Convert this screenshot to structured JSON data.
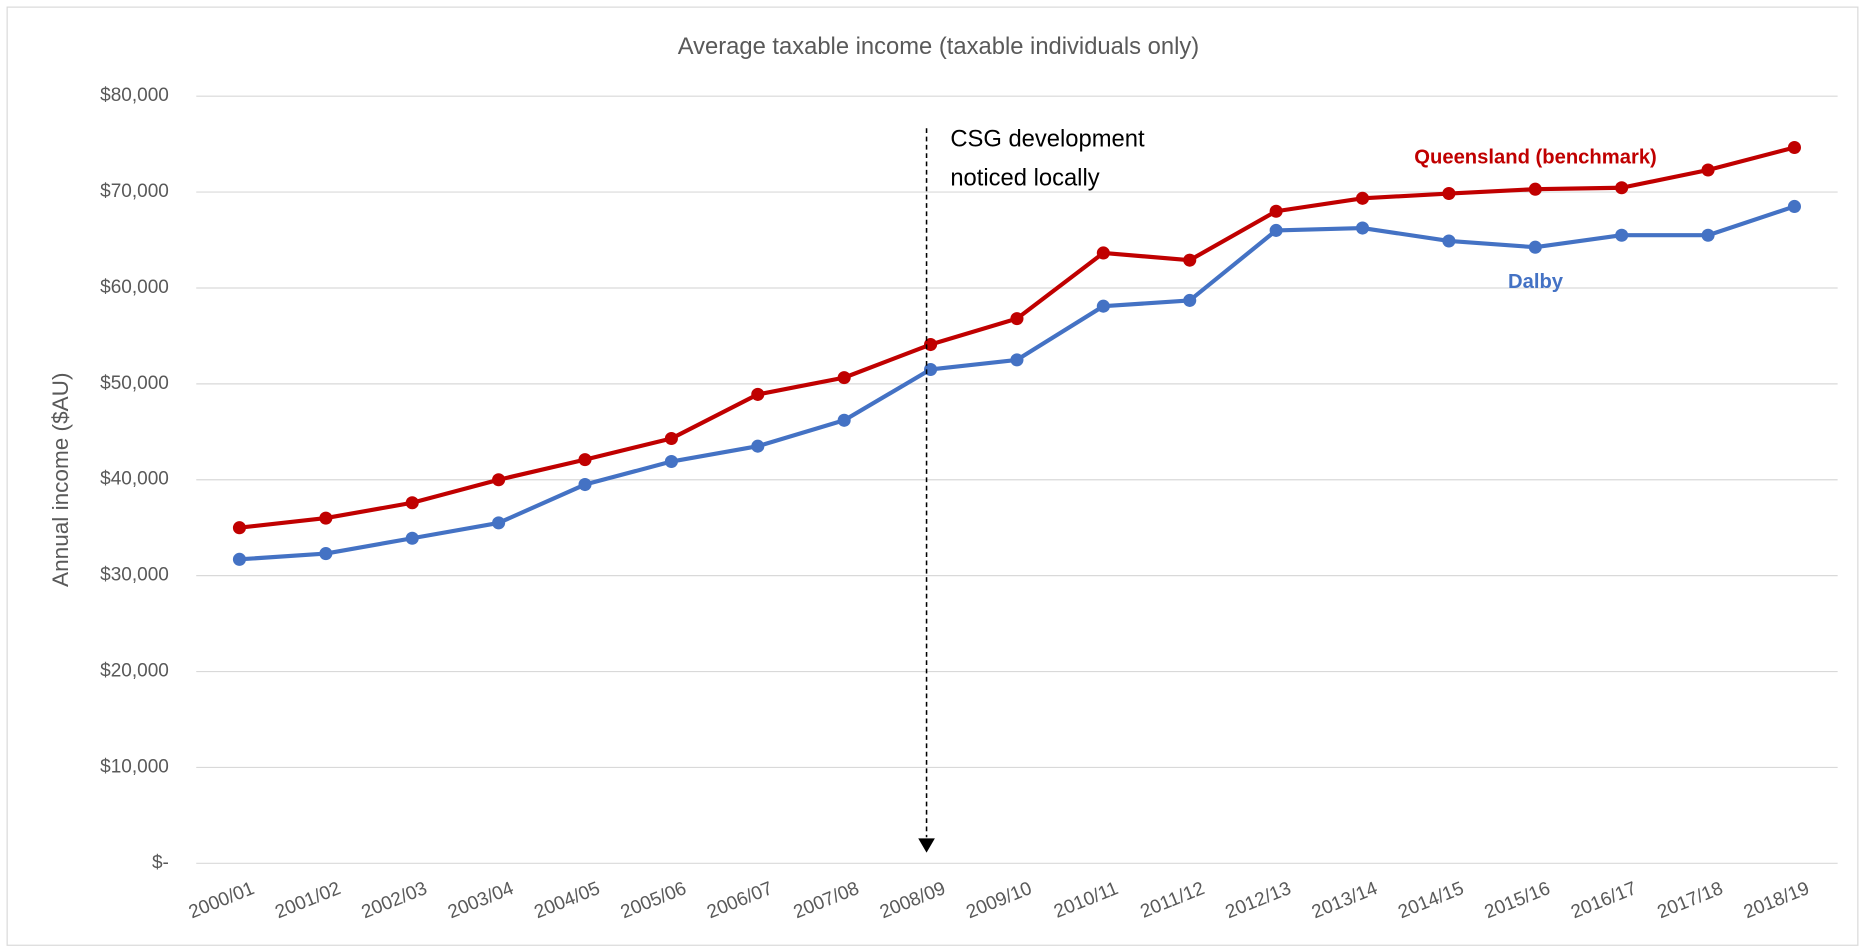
{
  "chart_data": {
    "type": "line",
    "title": "Average taxable income (taxable individuals only)",
    "y_label": "Annual income ($AU)",
    "annotation": [
      "CSG development",
      "noticed locally"
    ],
    "categories": [
      "2000/01",
      "2001/02",
      "2002/03",
      "2003/04",
      "2004/05",
      "2005/06",
      "2006/07",
      "2007/08",
      "2008/09",
      "2009/10",
      "2010/11",
      "2011/12",
      "2012/13",
      "2013/14",
      "2014/15",
      "2015/16",
      "2016/17",
      "2017/18",
      "2018/19"
    ],
    "series": [
      {
        "name": "Queensland (benchmark)",
        "color": "#c00000",
        "values": [
          35000,
          36000,
          37600,
          40000,
          42100,
          44300,
          48900,
          50650,
          54100,
          56800,
          63650,
          62900,
          68000,
          69350,
          69850,
          70300,
          70450,
          72300,
          74650
        ]
      },
      {
        "name": "Dalby",
        "color": "#4472c4",
        "values": [
          31700,
          32300,
          33900,
          35500,
          39500,
          41900,
          43500,
          46200,
          51500,
          52500,
          58100,
          58700,
          66000,
          66250,
          64900,
          64250,
          65500,
          65500,
          68500
        ]
      }
    ],
    "ylim": [
      0,
      80000
    ],
    "yticks": [
      {
        "value": 0,
        "label": "$-"
      },
      {
        "value": 10000,
        "label": "$10,000"
      },
      {
        "value": 20000,
        "label": "$20,000"
      },
      {
        "value": 30000,
        "label": "$30,000"
      },
      {
        "value": 40000,
        "label": "$40,000"
      },
      {
        "value": 50000,
        "label": "$50,000"
      },
      {
        "value": 60000,
        "label": "$60,000"
      },
      {
        "value": 70000,
        "label": "$70,000"
      },
      {
        "value": 80000,
        "label": "$80,000"
      }
    ],
    "grid": true
  }
}
